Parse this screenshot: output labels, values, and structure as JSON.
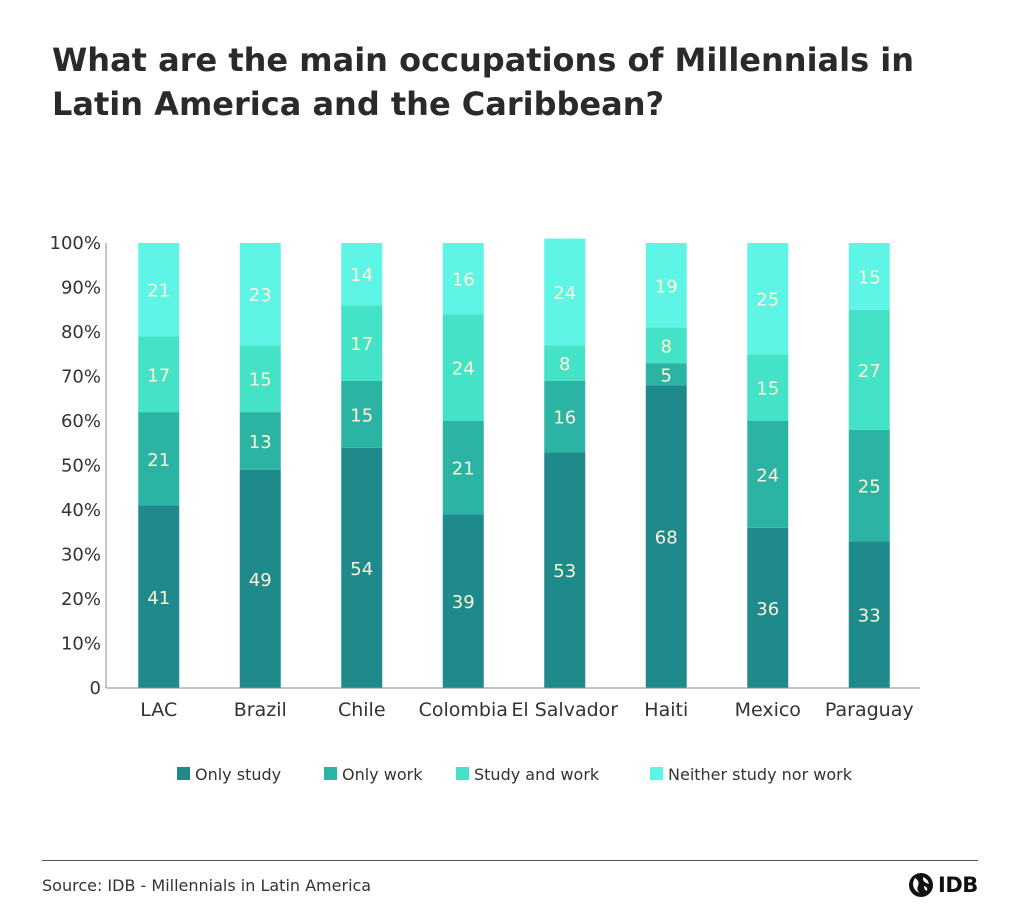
{
  "chart_data": {
    "type": "bar",
    "stacked": true,
    "title": "What are the main occupations of Millennials in Latin America and the Caribbean?",
    "categories": [
      "LAC",
      "Brazil",
      "Chile",
      "Colombia",
      "El Salvador",
      "Haiti",
      "Mexico",
      "Paraguay"
    ],
    "series": [
      {
        "name": "Only study",
        "color": "#1f8a8c",
        "values": [
          41,
          49,
          54,
          39,
          53,
          68,
          36,
          33
        ]
      },
      {
        "name": "Only work",
        "color": "#2bb3a3",
        "values": [
          21,
          13,
          15,
          21,
          16,
          5,
          24,
          25
        ]
      },
      {
        "name": "Study and work",
        "color": "#44e2c6",
        "values": [
          17,
          15,
          17,
          24,
          8,
          8,
          15,
          27
        ]
      },
      {
        "name": "Neither study nor work",
        "color": "#5ef5e6",
        "values": [
          21,
          23,
          14,
          16,
          24,
          19,
          25,
          15
        ]
      }
    ],
    "yticks": [
      "0",
      "10%",
      "20%",
      "30%",
      "40%",
      "50%",
      "60%",
      "70%",
      "80%",
      "90%",
      "100%"
    ],
    "ylim": [
      0,
      100
    ],
    "legend_position": "bottom",
    "grid": false,
    "label_color": "#fdf5d8"
  },
  "footer": {
    "source": "Source: IDB - Millennials in Latin America",
    "logo_text": "IDB"
  }
}
